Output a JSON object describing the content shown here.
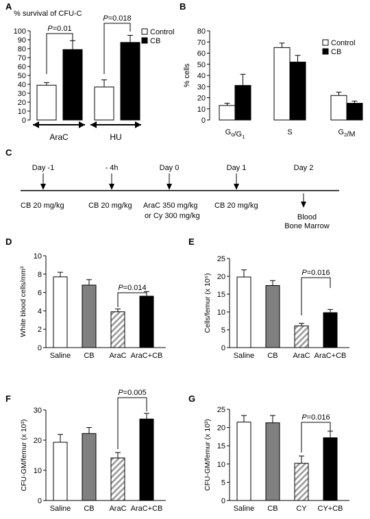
{
  "panels": {
    "A": "A",
    "B": "B",
    "C": "C",
    "D": "D",
    "E": "E",
    "F": "F",
    "G": "G"
  },
  "colors": {
    "control": "#ffffff",
    "cb": "#000000",
    "gray": "#808080",
    "hatch": "#999999",
    "line": "#000000"
  },
  "timeline": {
    "days": [
      "Day -1",
      "- 4h",
      "Day 0",
      "Day 1",
      "Day 2"
    ],
    "treatments": [
      "CB 20 mg/kg",
      "CB 20 mg/kg",
      "AraC 350 mg/kg",
      "or Cy 300 mg/kg",
      "CB 20 mg/kg",
      "Blood",
      "Bone Marrow"
    ]
  },
  "chart_data": [
    {
      "panel": "A",
      "type": "bar",
      "ylabel": "% survival of CFU-C",
      "ylim": [
        0,
        100
      ],
      "yticks": [
        0,
        10,
        20,
        30,
        40,
        50,
        60,
        70,
        80,
        90,
        100
      ],
      "groups": [
        "AraC",
        "HU"
      ],
      "series": [
        {
          "name": "Control",
          "values": [
            39,
            37
          ],
          "errors": [
            3,
            8
          ]
        },
        {
          "name": "CB",
          "values": [
            79,
            87
          ],
          "errors": [
            10,
            8
          ]
        }
      ],
      "annotations": [
        {
          "text": "P=0.01",
          "group": "AraC"
        },
        {
          "text": "P=0.018",
          "group": "HU"
        }
      ],
      "legend": "top-right"
    },
    {
      "panel": "B",
      "type": "bar",
      "ylabel": "% cells",
      "ylim": [
        0,
        80
      ],
      "yticks": [
        0,
        10,
        20,
        30,
        40,
        50,
        60,
        70,
        80
      ],
      "categories": [
        "G0/G1",
        "S",
        "G2/M"
      ],
      "series": [
        {
          "name": "Control",
          "values": [
            13,
            65,
            22
          ],
          "errors": [
            2,
            4,
            3
          ]
        },
        {
          "name": "CB",
          "values": [
            31,
            52,
            15
          ],
          "errors": [
            10,
            6,
            2
          ]
        }
      ],
      "legend": "top-right"
    },
    {
      "panel": "D",
      "type": "bar",
      "ylabel": "White blood cells/mm³",
      "ylim": [
        0,
        10
      ],
      "yticks": [
        0,
        2,
        4,
        6,
        8,
        10
      ],
      "categories": [
        "Saline",
        "CB",
        "AraC",
        "AraC+CB"
      ],
      "values": [
        7.7,
        6.8,
        3.9,
        5.6
      ],
      "errors": [
        0.5,
        0.6,
        0.3,
        0.5
      ],
      "annotation": "P=0.014"
    },
    {
      "panel": "E",
      "type": "bar",
      "ylabel": "Cells/femur (x 10⁶)",
      "ylim": [
        0,
        25
      ],
      "yticks": [
        0,
        5,
        10,
        15,
        20,
        25
      ],
      "categories": [
        "Saline",
        "CB",
        "AraC",
        "AraC+CB"
      ],
      "values": [
        19.8,
        17.4,
        6.1,
        9.8
      ],
      "errors": [
        2.0,
        1.4,
        0.7,
        0.9
      ],
      "annotation": "P=0.016"
    },
    {
      "panel": "F",
      "type": "bar",
      "ylabel": "CFU-GM/femur (x 10³)",
      "ylim": [
        0,
        30
      ],
      "yticks": [
        0,
        10,
        20,
        30
      ],
      "categories": [
        "Saline",
        "CB",
        "AraC",
        "AraC+CB"
      ],
      "values": [
        19.3,
        22.2,
        14.1,
        27.0
      ],
      "errors": [
        2.6,
        2.0,
        1.8,
        1.9
      ],
      "annotation": "P=0.005"
    },
    {
      "panel": "G",
      "type": "bar",
      "ylabel": "CFU-GM/femur (x 10³)",
      "ylim": [
        0,
        25
      ],
      "yticks": [
        0,
        5,
        10,
        15,
        20,
        25
      ],
      "categories": [
        "Saline",
        "CB",
        "CY",
        "CY+CB"
      ],
      "values": [
        21.5,
        21.3,
        10.2,
        17.2
      ],
      "errors": [
        1.8,
        2.0,
        2.0,
        1.8
      ],
      "annotation": "P=0.016"
    }
  ]
}
